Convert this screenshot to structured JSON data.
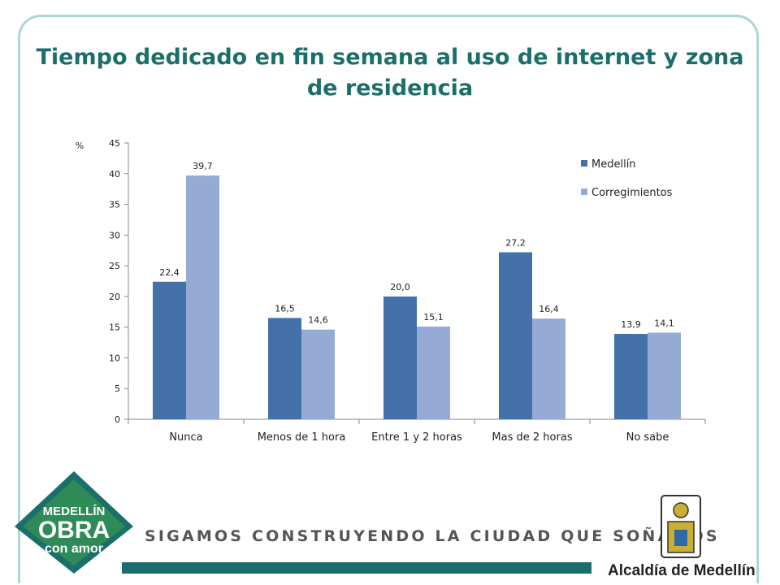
{
  "slide": {
    "title": "Tiempo dedicado en fin semana al uso de internet y zona de residencia",
    "slogan": "SIGAMOS CONSTRUYENDO LA CIUDAD QUE SOÑAMOS",
    "logo_left": {
      "line1": "MEDELLÍN",
      "line2": "OBRA",
      "line3": "con amor"
    },
    "logo_right_text": "Alcaldía de Medellín",
    "colors": {
      "title": "#1b6f6a",
      "frame": "#a9d8d6",
      "footer": "#1b6f6a"
    }
  },
  "chart_data": {
    "type": "bar",
    "title": "Tiempo dedicado en fin semana al uso de internet y zona de residencia",
    "ylabel": "%",
    "ylim": [
      0,
      45
    ],
    "yticks": [
      0,
      5,
      10,
      15,
      20,
      25,
      30,
      35,
      40,
      45
    ],
    "categories": [
      "Nunca",
      "Menos de 1 hora",
      "Entre 1 y 2 horas",
      "Mas de 2 horas",
      "No sabe"
    ],
    "series": [
      {
        "name": "Medellín",
        "color": "#4472a8",
        "values": [
          22.4,
          16.5,
          20.0,
          27.2,
          13.9
        ],
        "labels": [
          "22,4",
          "16,5",
          "20,0",
          "27,2",
          "13,9"
        ]
      },
      {
        "name": "Corregimientos",
        "color": "#95aad4",
        "values": [
          39.7,
          14.6,
          15.1,
          16.4,
          14.1
        ],
        "labels": [
          "39,7",
          "14,6",
          "15,1",
          "16,4",
          "14,1"
        ]
      }
    ],
    "legend_position": "top-right",
    "grid": false
  }
}
